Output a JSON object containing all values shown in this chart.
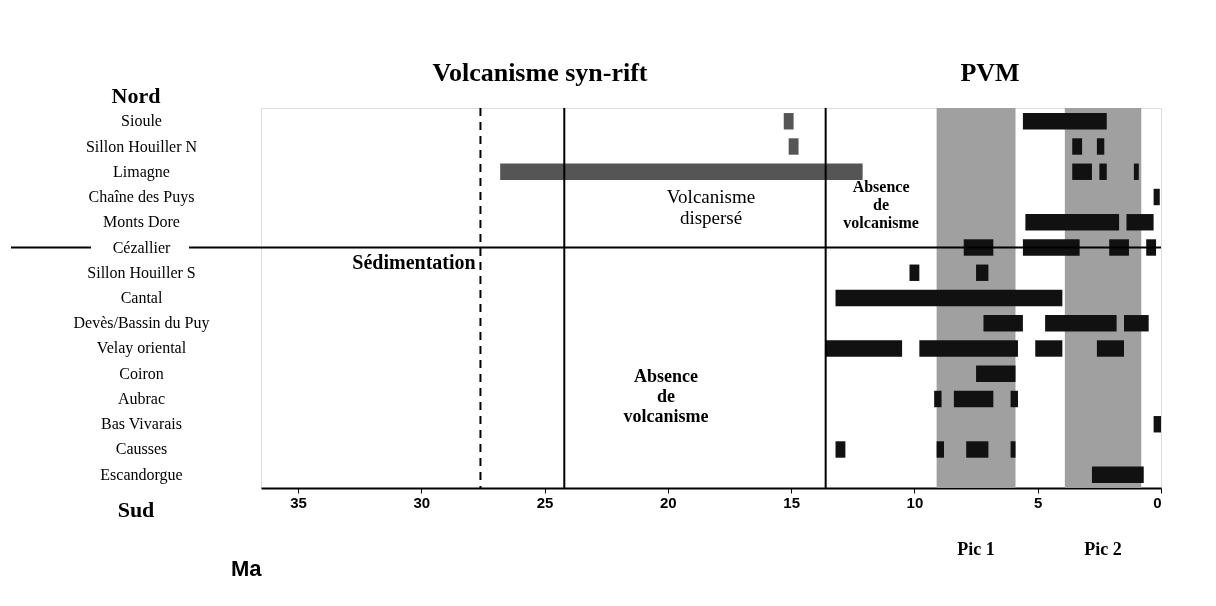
{
  "chart_data": {
    "type": "bar",
    "orientation": "horizontal",
    "xlabel": "Ma",
    "categories": [
      "Sioule",
      "Sillon Houiller N",
      "Limagne",
      "Chaîne des Puys",
      "Monts Dore",
      "Cézallier",
      "Sillon Houiller S",
      "Cantal",
      "Devès/Bassin du Puy",
      "Velay oriental",
      "Coiron",
      "Aubrac",
      "Bas Vivarais",
      "Causses",
      "Escandorgue"
    ],
    "series": [
      {
        "color": "#111111",
        "base": [
          2.2,
          2.3,
          0.9,
          0.05,
          0.3,
          0.2,
          7.0,
          4.0,
          0.5,
          1.5,
          5.9,
          5.8,
          0.0,
          5.9,
          0.7
        ],
        "values": [
          3.4,
          0.3,
          0.2,
          0.25,
          1.1,
          0.4,
          0.5,
          9.2,
          1.0,
          1.1,
          1.6,
          0.3,
          0.3,
          0.2,
          2.1
        ]
      },
      {
        "color": "#111111",
        "base": [
          null,
          3.2,
          2.2,
          null,
          1.7,
          1.3,
          9.8,
          null,
          1.8,
          4.0,
          null,
          6.8,
          null,
          7.0,
          null
        ],
        "values": [
          null,
          0.4,
          0.3,
          null,
          3.8,
          0.8,
          0.4,
          null,
          2.9,
          1.1,
          null,
          1.6,
          null,
          0.9,
          null
        ]
      },
      {
        "color": "#111111",
        "base": [
          null,
          null,
          2.8,
          null,
          null,
          3.3,
          null,
          null,
          5.6,
          5.8,
          null,
          8.9,
          null,
          8.8,
          null
        ],
        "values": [
          null,
          null,
          0.8,
          null,
          null,
          2.3,
          null,
          null,
          1.6,
          4.0,
          null,
          0.3,
          null,
          0.3,
          null
        ]
      },
      {
        "color": "#111111",
        "base": [
          null,
          null,
          null,
          null,
          null,
          6.8,
          null,
          null,
          null,
          10.5,
          null,
          null,
          null,
          12.8,
          null
        ],
        "values": [
          null,
          null,
          null,
          null,
          null,
          1.2,
          null,
          null,
          null,
          3.1,
          null,
          null,
          null,
          0.4,
          null
        ]
      },
      {
        "color": "#555555",
        "base": [
          14.9,
          14.7,
          12.1,
          null,
          null,
          null,
          null,
          null,
          null,
          null,
          null,
          null,
          null,
          null,
          null
        ],
        "values": [
          0.4,
          0.4,
          14.7,
          null,
          null,
          null,
          null,
          null,
          null,
          null,
          null,
          null,
          null,
          null,
          null
        ]
      }
    ],
    "xlim": [
      36.5,
      0
    ],
    "xticks": [
      35,
      30,
      25,
      20,
      15,
      10,
      5,
      0
    ],
    "bands": [
      {
        "axis": "x",
        "from": 9.1,
        "to": 5.9,
        "label": "Pic 1",
        "color": "#a0a0a0"
      },
      {
        "axis": "x",
        "from": 3.9,
        "to": 0.8,
        "label": "Pic 2",
        "color": "#a0a0a0"
      }
    ],
    "ref_lines": [
      {
        "axis": "x",
        "value": 24.2,
        "line_style": "solid"
      },
      {
        "axis": "x",
        "value": 27.6,
        "line_style": "dashed"
      },
      {
        "axis": "x",
        "value": 13.6,
        "line_style": "solid"
      },
      {
        "axis": "y",
        "value": "Cézallier",
        "line_style": "solid"
      }
    ],
    "annotations": [
      "Nord",
      "Sud",
      "Volcanisme syn-rift",
      "PVM",
      "Sédimentation",
      "Volcanisme dispersé",
      "Absence de volcanisme",
      "Absence de volcanisme"
    ],
    "grid": false
  }
}
